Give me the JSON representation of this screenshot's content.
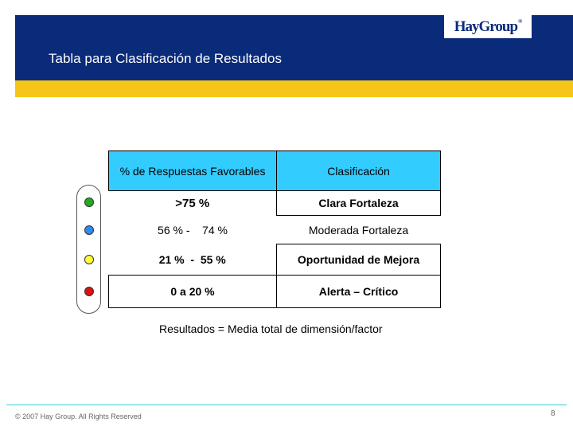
{
  "header": {
    "title": "Tabla para Clasificación de Resultados",
    "logo_text": "HayGroup",
    "logo_mark": "®"
  },
  "table": {
    "headers": [
      "% de Respuestas Favorables",
      "Clasificación"
    ],
    "rows": [
      {
        "range": ">75 %",
        "classification": "Clara Fortaleza",
        "bullet_color": "#22aa22"
      },
      {
        "range": "56 % -    74 %",
        "classification": "Moderada Fortaleza",
        "bullet_color": "#3388ee"
      },
      {
        "range": "21 %  -  55 %",
        "classification": "Oportunidad de Mejora",
        "bullet_color": "#ffff33"
      },
      {
        "range": "0 a 20 %",
        "classification": "Alerta – Crítico",
        "bullet_color": "#dd1111"
      }
    ]
  },
  "formula_text": "Resultados = Media total de dimensión/factor",
  "footer": {
    "copyright": "© 2007 Hay Group. All Rights Reserved",
    "page_number": "8"
  },
  "colors": {
    "header_band": "#0a2a7a",
    "accent_band": "#f5c518",
    "table_header": "#33ccff"
  }
}
